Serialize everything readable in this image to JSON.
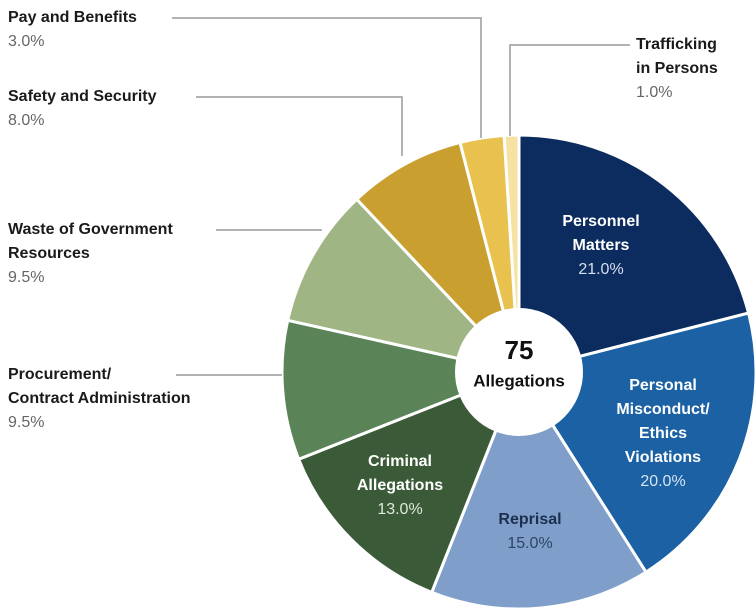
{
  "chart_data": {
    "type": "donut",
    "center_value": "75",
    "center_label": "Allegations",
    "categories": [
      "Personnel\nMatters",
      "Personal\nMisconduct/\nEthics\nViolations",
      "Reprisal",
      "Criminal\nAllegations",
      "Procurement/\nContract Administration",
      "Waste of Government\nResources",
      "Safety and Security",
      "Pay and Benefits",
      "Trafficking\nin Persons"
    ],
    "values": [
      21.0,
      20.0,
      15.0,
      13.0,
      9.5,
      9.5,
      8.0,
      3.0,
      1.0
    ],
    "value_labels": [
      "21.0%",
      "20.0%",
      "15.0%",
      "13.0%",
      "9.5%",
      "9.5%",
      "8.0%",
      "3.0%",
      "1.0%"
    ],
    "colors": [
      "#0c2b5f",
      "#1b61a3",
      "#7f9fca",
      "#3b5b38",
      "#5a8458",
      "#a0b584",
      "#c9a030",
      "#e9c14f",
      "#f6e2a3"
    ]
  }
}
